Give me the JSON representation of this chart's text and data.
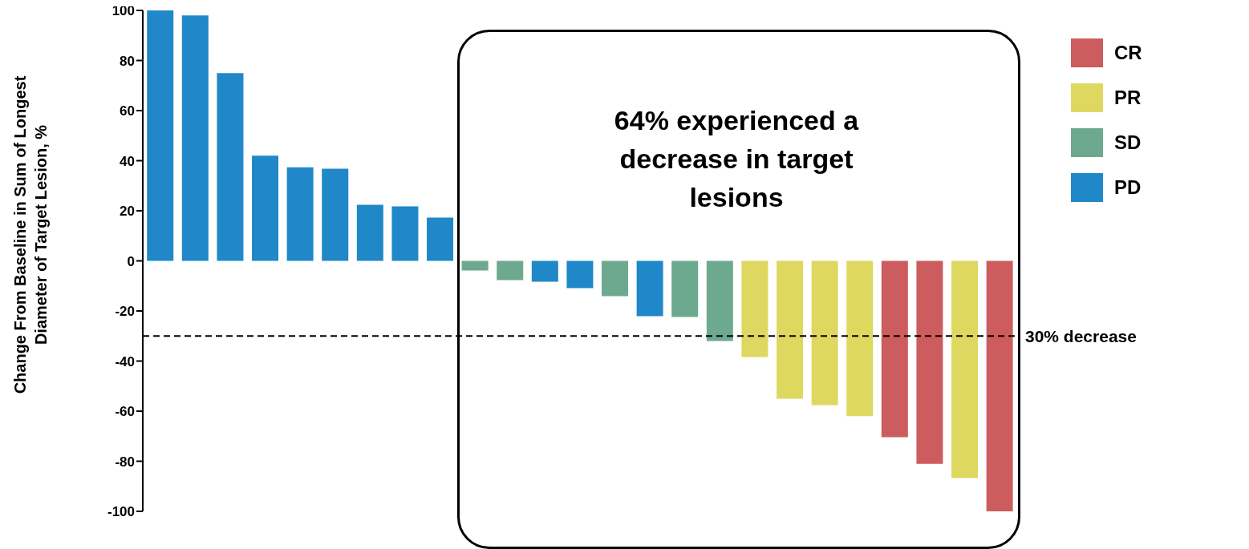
{
  "chart_data": {
    "type": "bar",
    "ylabel": "Change From Baseline in Sum of Longest Diameter of Target Lesion, %",
    "categories": [
      null,
      null,
      null,
      null,
      null,
      null,
      null,
      null,
      null,
      null,
      null,
      null,
      null,
      null,
      null,
      null,
      null,
      null,
      null,
      null,
      null,
      null,
      null,
      null,
      null
    ],
    "stacked": true,
    "series": [
      {
        "name": "CR",
        "color": "#cd5c5f",
        "values": [
          null,
          null,
          null,
          null,
          null,
          null,
          null,
          null,
          null,
          null,
          null,
          null,
          null,
          null,
          null,
          null,
          null,
          null,
          null,
          null,
          null,
          -70.4,
          -81,
          null,
          -100
        ]
      },
      {
        "name": "PR",
        "color": "#ded861",
        "values": [
          null,
          null,
          null,
          null,
          null,
          null,
          null,
          null,
          null,
          null,
          null,
          null,
          null,
          null,
          null,
          null,
          null,
          -38.4,
          -55,
          -57.6,
          -62,
          null,
          null,
          -86.7,
          null
        ]
      },
      {
        "name": "SD",
        "color": "#6da98f",
        "values": [
          null,
          null,
          null,
          null,
          null,
          null,
          null,
          null,
          null,
          -3.8,
          -7.7,
          null,
          null,
          -14.1,
          null,
          -22.4,
          -32,
          null,
          null,
          null,
          null,
          null,
          null,
          null,
          null
        ]
      },
      {
        "name": "PD",
        "color": "#2088c9",
        "values": [
          100,
          98,
          75,
          42,
          37.4,
          36.8,
          22.4,
          21.8,
          17.3,
          null,
          null,
          -8.3,
          -10.9,
          null,
          -22.1,
          null,
          null,
          null,
          null,
          null,
          null,
          null,
          null,
          null,
          null
        ]
      }
    ],
    "ylim": [
      -100,
      100
    ],
    "yticks": [
      -100,
      -80,
      -60,
      -40,
      -20,
      0,
      20,
      40,
      60,
      80,
      100
    ],
    "grid": false,
    "legend": "top right",
    "tick_labels": "y",
    "ref_lines": [
      {
        "axis": "y",
        "value": -30,
        "label": "30% decrease",
        "line_style": "dashed",
        "color": "#000000"
      }
    ],
    "annotations": [
      "64% experienced a decrease in target lesions"
    ]
  }
}
